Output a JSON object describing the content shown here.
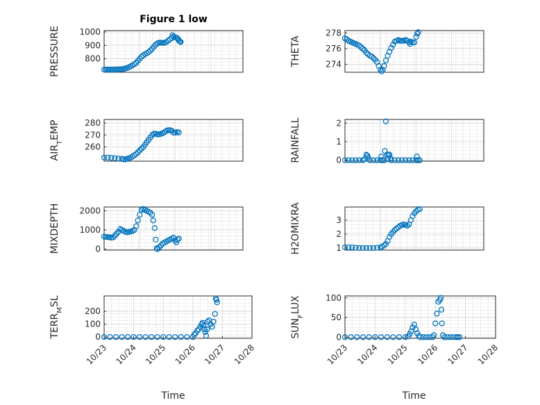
{
  "figure": {
    "title": "Figure 1 low",
    "xlabel": "Time"
  },
  "colors": {
    "marker": "#0072BD",
    "axis": "#262626",
    "grid": "#b0b0b0"
  },
  "chart_data": [
    {
      "name": "pressure",
      "type": "scatter",
      "ylabel": "PRESSURE",
      "title": "Figure 1 low",
      "ylim": [
        700,
        1010
      ],
      "yticks": [
        800,
        900,
        1000
      ],
      "xlim": [
        0,
        3.9
      ],
      "show_xticks": false,
      "points": [
        [
          0.0,
          720
        ],
        [
          0.05,
          720
        ],
        [
          0.1,
          720
        ],
        [
          0.15,
          720
        ],
        [
          0.2,
          720
        ],
        [
          0.25,
          720
        ],
        [
          0.3,
          720
        ],
        [
          0.35,
          721
        ],
        [
          0.4,
          721
        ],
        [
          0.45,
          722
        ],
        [
          0.5,
          723
        ],
        [
          0.55,
          725
        ],
        [
          0.6,
          728
        ],
        [
          0.65,
          732
        ],
        [
          0.7,
          738
        ],
        [
          0.75,
          745
        ],
        [
          0.8,
          752
        ],
        [
          0.85,
          760
        ],
        [
          0.9,
          770
        ],
        [
          0.95,
          785
        ],
        [
          1.0,
          800
        ],
        [
          1.05,
          815
        ],
        [
          1.1,
          825
        ],
        [
          1.15,
          835
        ],
        [
          1.2,
          842
        ],
        [
          1.25,
          850
        ],
        [
          1.3,
          862
        ],
        [
          1.35,
          875
        ],
        [
          1.4,
          890
        ],
        [
          1.45,
          905
        ],
        [
          1.5,
          915
        ],
        [
          1.55,
          920
        ],
        [
          1.6,
          920
        ],
        [
          1.65,
          918
        ],
        [
          1.7,
          920
        ],
        [
          1.75,
          925
        ],
        [
          1.8,
          935
        ],
        [
          1.85,
          945
        ],
        [
          1.9,
          955
        ],
        [
          1.92,
          975
        ],
        [
          1.95,
          965
        ],
        [
          2.0,
          960
        ],
        [
          2.05,
          955
        ],
        [
          2.08,
          945
        ],
        [
          2.1,
          935
        ],
        [
          2.13,
          928
        ],
        [
          2.15,
          925
        ]
      ]
    },
    {
      "name": "theta",
      "type": "scatter",
      "ylabel": "THETA",
      "ylim": [
        273,
        278.3
      ],
      "yticks": [
        274,
        276,
        278
      ],
      "xlim": [
        0,
        3.9
      ],
      "show_xticks": false,
      "points": [
        [
          0.0,
          277.3
        ],
        [
          0.05,
          277.2
        ],
        [
          0.1,
          277.0
        ],
        [
          0.15,
          276.9
        ],
        [
          0.2,
          276.8
        ],
        [
          0.25,
          276.7
        ],
        [
          0.3,
          276.6
        ],
        [
          0.35,
          276.5
        ],
        [
          0.4,
          276.4
        ],
        [
          0.45,
          276.2
        ],
        [
          0.5,
          276.0
        ],
        [
          0.55,
          275.8
        ],
        [
          0.6,
          275.5
        ],
        [
          0.65,
          275.3
        ],
        [
          0.7,
          275.1
        ],
        [
          0.75,
          275.0
        ],
        [
          0.8,
          274.8
        ],
        [
          0.85,
          274.6
        ],
        [
          0.9,
          274.3
        ],
        [
          0.95,
          273.8
        ],
        [
          1.0,
          273.3
        ],
        [
          1.03,
          273.1
        ],
        [
          1.06,
          273.3
        ],
        [
          1.1,
          273.8
        ],
        [
          1.15,
          274.5
        ],
        [
          1.2,
          275.1
        ],
        [
          1.25,
          275.6
        ],
        [
          1.3,
          276.1
        ],
        [
          1.35,
          276.5
        ],
        [
          1.4,
          276.9
        ],
        [
          1.45,
          277.0
        ],
        [
          1.5,
          277.1
        ],
        [
          1.55,
          277.0
        ],
        [
          1.6,
          277.0
        ],
        [
          1.65,
          277.0
        ],
        [
          1.7,
          277.1
        ],
        [
          1.75,
          277.0
        ],
        [
          1.8,
          276.8
        ],
        [
          1.83,
          276.6
        ],
        [
          1.85,
          276.9
        ],
        [
          1.9,
          276.8
        ],
        [
          1.95,
          276.8
        ],
        [
          2.0,
          277.5
        ],
        [
          2.03,
          277.9
        ],
        [
          2.06,
          278.1
        ]
      ]
    },
    {
      "name": "air_temp",
      "type": "scatter",
      "ylabel": "AIR",
      "ylabel_sub": "T",
      "ylabel_tail": "EMP",
      "ylim": [
        248,
        283
      ],
      "yticks": [
        260,
        270,
        280
      ],
      "xlim": [
        0,
        3.9
      ],
      "show_xticks": false,
      "points": [
        [
          0.0,
          251
        ],
        [
          0.1,
          251
        ],
        [
          0.2,
          250.8
        ],
        [
          0.3,
          250.5
        ],
        [
          0.4,
          250.2
        ],
        [
          0.5,
          250
        ],
        [
          0.55,
          249.5
        ],
        [
          0.6,
          249.5
        ],
        [
          0.65,
          250
        ],
        [
          0.7,
          250.5
        ],
        [
          0.75,
          251
        ],
        [
          0.8,
          252
        ],
        [
          0.85,
          253
        ],
        [
          0.9,
          254
        ],
        [
          0.95,
          255.5
        ],
        [
          1.0,
          257
        ],
        [
          1.05,
          258.5
        ],
        [
          1.1,
          260
        ],
        [
          1.15,
          262
        ],
        [
          1.2,
          264
        ],
        [
          1.25,
          266
        ],
        [
          1.3,
          268
        ],
        [
          1.35,
          270
        ],
        [
          1.4,
          271
        ],
        [
          1.45,
          271
        ],
        [
          1.5,
          270.5
        ],
        [
          1.55,
          270.5
        ],
        [
          1.6,
          271
        ],
        [
          1.65,
          271.5
        ],
        [
          1.7,
          272.5
        ],
        [
          1.75,
          273.5
        ],
        [
          1.8,
          274
        ],
        [
          1.85,
          274
        ],
        [
          1.9,
          273.5
        ],
        [
          1.95,
          272
        ],
        [
          2.0,
          272
        ],
        [
          2.05,
          272.5
        ],
        [
          2.1,
          272
        ]
      ]
    },
    {
      "name": "rainfall",
      "type": "scatter",
      "ylabel": "RAINFALL",
      "ylim": [
        -0.05,
        2.2
      ],
      "yticks": [
        0,
        1,
        2
      ],
      "xlim": [
        0,
        3.9
      ],
      "show_xticks": false,
      "points": [
        [
          0.0,
          0
        ],
        [
          0.1,
          0
        ],
        [
          0.2,
          0
        ],
        [
          0.3,
          0
        ],
        [
          0.4,
          0
        ],
        [
          0.5,
          0
        ],
        [
          0.55,
          0.05
        ],
        [
          0.6,
          0.3
        ],
        [
          0.63,
          0.25
        ],
        [
          0.65,
          0.15
        ],
        [
          0.7,
          0
        ],
        [
          0.8,
          0
        ],
        [
          0.9,
          0
        ],
        [
          1.0,
          0
        ],
        [
          1.02,
          0.2
        ],
        [
          1.05,
          0
        ],
        [
          1.1,
          0
        ],
        [
          1.12,
          0.5
        ],
        [
          1.15,
          2.1
        ],
        [
          1.18,
          0.3
        ],
        [
          1.2,
          0.05
        ],
        [
          1.22,
          0.3
        ],
        [
          1.25,
          0.3
        ],
        [
          1.28,
          0.1
        ],
        [
          1.3,
          0
        ],
        [
          1.4,
          0
        ],
        [
          1.5,
          0
        ],
        [
          1.6,
          0
        ],
        [
          1.7,
          0
        ],
        [
          1.8,
          0
        ],
        [
          1.9,
          0
        ],
        [
          2.0,
          0
        ],
        [
          2.02,
          0.2
        ],
        [
          2.05,
          0
        ],
        [
          2.1,
          0
        ]
      ]
    },
    {
      "name": "mixdepth",
      "type": "scatter",
      "ylabel": "MIXDEPTH",
      "ylim": [
        -50,
        2200
      ],
      "yticks": [
        0,
        1000,
        2000
      ],
      "xlim": [
        0,
        3.9
      ],
      "show_xticks": false,
      "points": [
        [
          0.0,
          650
        ],
        [
          0.05,
          640
        ],
        [
          0.1,
          630
        ],
        [
          0.15,
          620
        ],
        [
          0.2,
          600
        ],
        [
          0.25,
          610
        ],
        [
          0.3,
          700
        ],
        [
          0.35,
          800
        ],
        [
          0.4,
          900
        ],
        [
          0.45,
          1050
        ],
        [
          0.5,
          1000
        ],
        [
          0.55,
          950
        ],
        [
          0.6,
          900
        ],
        [
          0.65,
          880
        ],
        [
          0.7,
          900
        ],
        [
          0.75,
          920
        ],
        [
          0.8,
          950
        ],
        [
          0.85,
          1000
        ],
        [
          0.9,
          1200
        ],
        [
          0.95,
          1500
        ],
        [
          1.0,
          1800
        ],
        [
          1.05,
          2050
        ],
        [
          1.1,
          2100
        ],
        [
          1.15,
          2050
        ],
        [
          1.2,
          2000
        ],
        [
          1.25,
          1950
        ],
        [
          1.3,
          1900
        ],
        [
          1.35,
          1800
        ],
        [
          1.38,
          1500
        ],
        [
          1.42,
          1100
        ],
        [
          1.45,
          500
        ],
        [
          1.48,
          50
        ],
        [
          1.5,
          0
        ],
        [
          1.55,
          100
        ],
        [
          1.6,
          200
        ],
        [
          1.65,
          300
        ],
        [
          1.7,
          350
        ],
        [
          1.75,
          400
        ],
        [
          1.8,
          450
        ],
        [
          1.85,
          500
        ],
        [
          1.9,
          550
        ],
        [
          1.95,
          600
        ],
        [
          2.0,
          450
        ],
        [
          2.03,
          350
        ],
        [
          2.06,
          500
        ],
        [
          2.1,
          550
        ]
      ]
    },
    {
      "name": "h2omixra",
      "type": "scatter",
      "ylabel": "H2OMIXRA",
      "ylim": [
        0.85,
        3.95
      ],
      "yticks": [
        1,
        2,
        3
      ],
      "xlim": [
        0,
        3.9
      ],
      "show_xticks": false,
      "points": [
        [
          0.0,
          1.05
        ],
        [
          0.1,
          1.05
        ],
        [
          0.2,
          1.05
        ],
        [
          0.3,
          1.02
        ],
        [
          0.4,
          1.0
        ],
        [
          0.5,
          1.0
        ],
        [
          0.6,
          1.0
        ],
        [
          0.7,
          1.0
        ],
        [
          0.8,
          1.0
        ],
        [
          0.9,
          1.02
        ],
        [
          1.0,
          1.05
        ],
        [
          1.05,
          1.1
        ],
        [
          1.1,
          1.2
        ],
        [
          1.15,
          1.3
        ],
        [
          1.2,
          1.5
        ],
        [
          1.25,
          1.8
        ],
        [
          1.3,
          2.0
        ],
        [
          1.35,
          2.15
        ],
        [
          1.4,
          2.3
        ],
        [
          1.45,
          2.4
        ],
        [
          1.5,
          2.5
        ],
        [
          1.55,
          2.6
        ],
        [
          1.6,
          2.65
        ],
        [
          1.65,
          2.7
        ],
        [
          1.7,
          2.65
        ],
        [
          1.75,
          2.6
        ],
        [
          1.8,
          2.7
        ],
        [
          1.85,
          3.0
        ],
        [
          1.9,
          3.3
        ],
        [
          1.95,
          3.5
        ],
        [
          2.0,
          3.65
        ],
        [
          2.05,
          3.75
        ],
        [
          2.1,
          3.8
        ]
      ]
    },
    {
      "name": "terr_msl",
      "type": "scatter",
      "ylabel": "TERR",
      "ylabel_sub": "M",
      "ylabel_tail": "SL",
      "ylim": [
        -10,
        320
      ],
      "yticks": [
        0,
        100,
        200
      ],
      "xlim": [
        0,
        5
      ],
      "xticks": [
        0,
        1,
        2,
        3,
        4,
        5
      ],
      "xticklabels": [
        "10/23",
        "10/24",
        "10/25",
        "10/26",
        "10/27",
        "10/28"
      ],
      "show_xticks": true,
      "xlabel": "Time",
      "points": [
        [
          0.0,
          0
        ],
        [
          0.2,
          0
        ],
        [
          0.4,
          0
        ],
        [
          0.6,
          0
        ],
        [
          0.8,
          0
        ],
        [
          1.0,
          0
        ],
        [
          1.2,
          0
        ],
        [
          1.4,
          0
        ],
        [
          1.6,
          0
        ],
        [
          1.8,
          0
        ],
        [
          2.0,
          0
        ],
        [
          2.2,
          0
        ],
        [
          2.4,
          0
        ],
        [
          2.6,
          0
        ],
        [
          2.8,
          0
        ],
        [
          3.0,
          0
        ],
        [
          3.05,
          20
        ],
        [
          3.1,
          30
        ],
        [
          3.15,
          50
        ],
        [
          3.2,
          60
        ],
        [
          3.25,
          80
        ],
        [
          3.3,
          100
        ],
        [
          3.33,
          110
        ],
        [
          3.36,
          90
        ],
        [
          3.4,
          60
        ],
        [
          3.42,
          40
        ],
        [
          3.45,
          10
        ],
        [
          3.48,
          60
        ],
        [
          3.5,
          120
        ],
        [
          3.55,
          130
        ],
        [
          3.6,
          100
        ],
        [
          3.65,
          80
        ],
        [
          3.7,
          120
        ],
        [
          3.75,
          180
        ],
        [
          3.78,
          300
        ],
        [
          3.8,
          290
        ],
        [
          3.82,
          270
        ]
      ]
    },
    {
      "name": "sun_flux",
      "type": "scatter",
      "ylabel": "SUN",
      "ylabel_sub": "F",
      "ylabel_tail": "LUX",
      "ylim": [
        -3,
        105
      ],
      "yticks": [
        0,
        50,
        100
      ],
      "xlim": [
        0,
        5
      ],
      "xticks": [
        0,
        1,
        2,
        3,
        4,
        5
      ],
      "xticklabels": [
        "10/23",
        "10/24",
        "10/25",
        "10/26",
        "10/27",
        "10/28"
      ],
      "show_xticks": true,
      "xlabel": "Time",
      "points": [
        [
          0.0,
          0
        ],
        [
          0.2,
          0
        ],
        [
          0.4,
          0
        ],
        [
          0.6,
          0
        ],
        [
          0.8,
          0
        ],
        [
          1.0,
          0
        ],
        [
          1.2,
          0
        ],
        [
          1.4,
          0
        ],
        [
          1.6,
          0
        ],
        [
          1.8,
          0
        ],
        [
          2.0,
          0
        ],
        [
          2.1,
          2
        ],
        [
          2.15,
          8
        ],
        [
          2.2,
          15
        ],
        [
          2.25,
          25
        ],
        [
          2.3,
          32
        ],
        [
          2.35,
          20
        ],
        [
          2.4,
          10
        ],
        [
          2.45,
          3
        ],
        [
          2.5,
          0
        ],
        [
          2.6,
          0
        ],
        [
          2.7,
          0
        ],
        [
          2.8,
          0
        ],
        [
          2.9,
          0
        ],
        [
          2.95,
          5
        ],
        [
          3.0,
          35
        ],
        [
          3.05,
          60
        ],
        [
          3.1,
          90
        ],
        [
          3.15,
          95
        ],
        [
          3.18,
          100
        ],
        [
          3.2,
          70
        ],
        [
          3.22,
          35
        ],
        [
          3.25,
          5
        ],
        [
          3.3,
          0
        ],
        [
          3.4,
          0
        ],
        [
          3.5,
          0
        ],
        [
          3.6,
          0
        ],
        [
          3.7,
          0
        ],
        [
          3.75,
          0
        ],
        [
          3.8,
          0
        ]
      ]
    }
  ]
}
